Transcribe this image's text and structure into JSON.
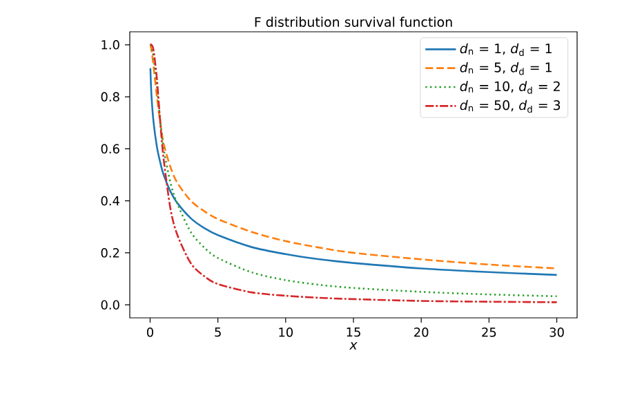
{
  "chart_data": {
    "type": "line",
    "title": "F distribution survival function",
    "xlabel": "x",
    "xlim": [
      -1.5,
      31.5
    ],
    "ylim": [
      -0.05,
      1.05
    ],
    "xticks": [
      0,
      5,
      10,
      15,
      20,
      25,
      30
    ],
    "yticks": [
      {
        "value": 0,
        "label": "0.0"
      },
      {
        "value": 0.2,
        "label": "0.2"
      },
      {
        "value": 0.4,
        "label": "0.4"
      },
      {
        "value": 0.6,
        "label": "0.6"
      },
      {
        "value": 0.8,
        "label": "0.8"
      },
      {
        "value": 1,
        "label": "1.0"
      }
    ],
    "legend": "top right",
    "grid": false,
    "x": [
      0.02,
      0.1,
      0.25,
      0.5,
      0.75,
      1,
      1.5,
      2,
      3,
      4,
      5,
      7.5,
      10,
      12.5,
      15,
      20,
      25,
      30
    ],
    "series": [
      {
        "name": "*d*$_{n}$ = 1, *d*$_{d}$ = 1",
        "color": "#1f77b4",
        "line_style": "solid",
        "values": [
          0.91,
          0.805,
          0.705,
          0.608,
          0.547,
          0.5,
          0.436,
          0.392,
          0.333,
          0.295,
          0.268,
          0.222,
          0.195,
          0.175,
          0.161,
          0.14,
          0.126,
          0.115
        ]
      },
      {
        "name": "*d*$_{n}$ = 5, *d*$_{d}$ = 1",
        "color": "#ff7f0e",
        "line_style": "dashed",
        "values": [
          1.0,
          0.98,
          0.92,
          0.8,
          0.7,
          0.62,
          0.53,
          0.47,
          0.4,
          0.36,
          0.33,
          0.28,
          0.245,
          0.22,
          0.2,
          0.175,
          0.155,
          0.14
        ]
      },
      {
        "name": "*d*$_{n}$ = 10, *d*$_{d}$ = 2",
        "color": "#2ca02c",
        "line_style": "dotted",
        "values": [
          1.0,
          0.99,
          0.95,
          0.84,
          0.71,
          0.6,
          0.47,
          0.39,
          0.28,
          0.22,
          0.18,
          0.125,
          0.095,
          0.077,
          0.065,
          0.05,
          0.04,
          0.033
        ]
      },
      {
        "name": "*d*$_{n}$ = 50, *d*$_{d}$ = 3",
        "color": "#d62728",
        "line_style": "dashdot",
        "values": [
          1.0,
          1.0,
          0.98,
          0.87,
          0.7,
          0.56,
          0.37,
          0.27,
          0.16,
          0.11,
          0.08,
          0.048,
          0.035,
          0.027,
          0.022,
          0.015,
          0.012,
          0.01
        ]
      }
    ]
  }
}
